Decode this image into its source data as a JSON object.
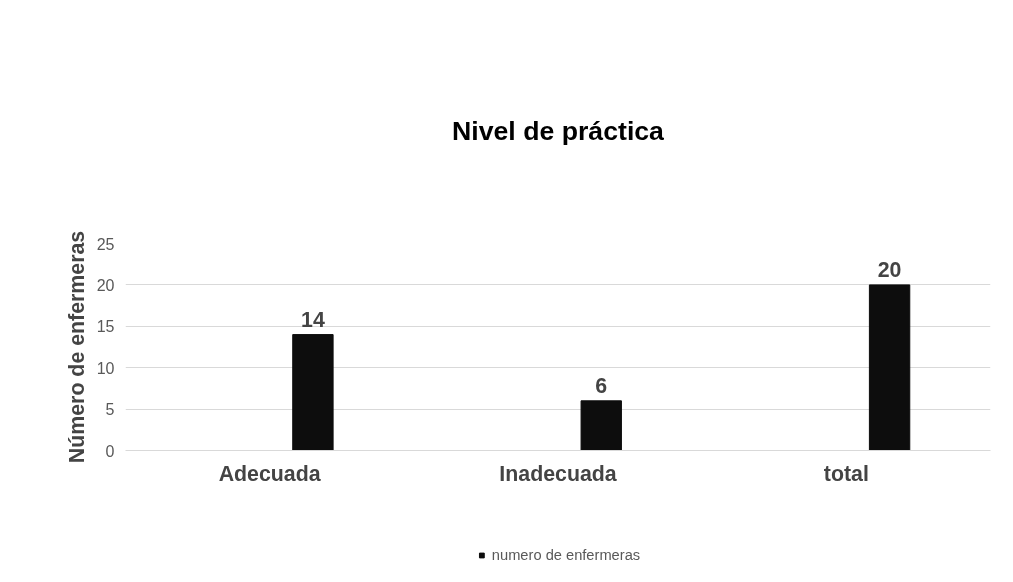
{
  "chart_data": {
    "type": "bar",
    "title": "Nivel de práctica",
    "ylabel": "Número de enfermeras",
    "categories": [
      "Adecuada",
      "Inadecuada",
      "total"
    ],
    "series": [
      {
        "color": "#4472c4",
        "values": [
          null,
          null,
          null
        ]
      },
      {
        "name": "numero de enfermeras",
        "color": "#0d0d0d",
        "values": [
          14,
          6,
          20
        ]
      }
    ],
    "ylim": [
      0,
      25
    ],
    "yticks": [
      0,
      5,
      10,
      15,
      20,
      25
    ],
    "grid": "y",
    "legend": "bottom",
    "data_labels": true
  }
}
